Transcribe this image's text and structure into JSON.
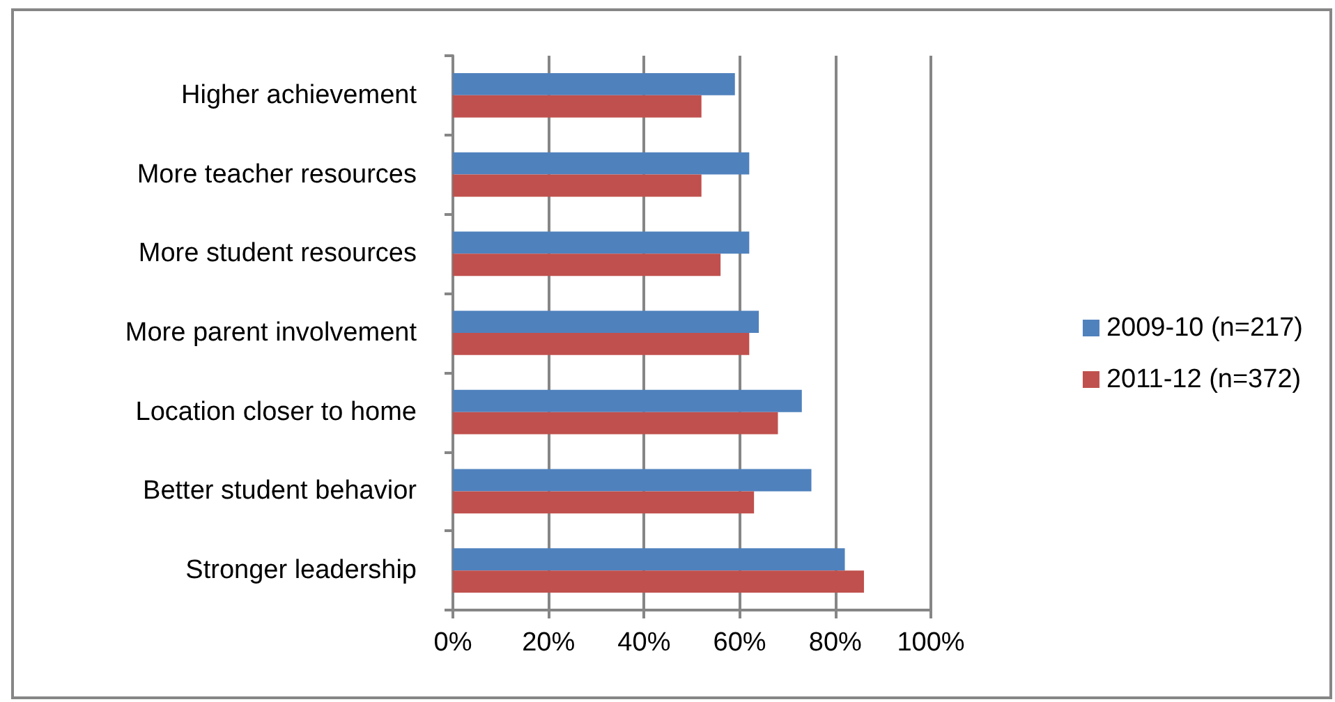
{
  "chart_data": {
    "type": "bar",
    "orientation": "horizontal",
    "categories": [
      "Higher achievement",
      "More teacher resources",
      "More student resources",
      "More parent involvement",
      "Location closer to home",
      "Better student behavior",
      "Stronger leadership"
    ],
    "series": [
      {
        "name": "2009-10 (n=217)",
        "color": "#4f81bd",
        "values": [
          59,
          62,
          62,
          64,
          73,
          75,
          82
        ]
      },
      {
        "name": "2011-12 (n=372)",
        "color": "#c0504d",
        "values": [
          52,
          52,
          56,
          62,
          68,
          63,
          86
        ]
      }
    ],
    "xlim": [
      0,
      100
    ],
    "xticks": [
      {
        "value": 0,
        "label": "0%"
      },
      {
        "value": 20,
        "label": "20%"
      },
      {
        "value": 40,
        "label": "40%"
      },
      {
        "value": 60,
        "label": "60%"
      },
      {
        "value": 80,
        "label": "80%"
      },
      {
        "value": 100,
        "label": "100%"
      }
    ],
    "grid": "x",
    "legend": "right"
  }
}
